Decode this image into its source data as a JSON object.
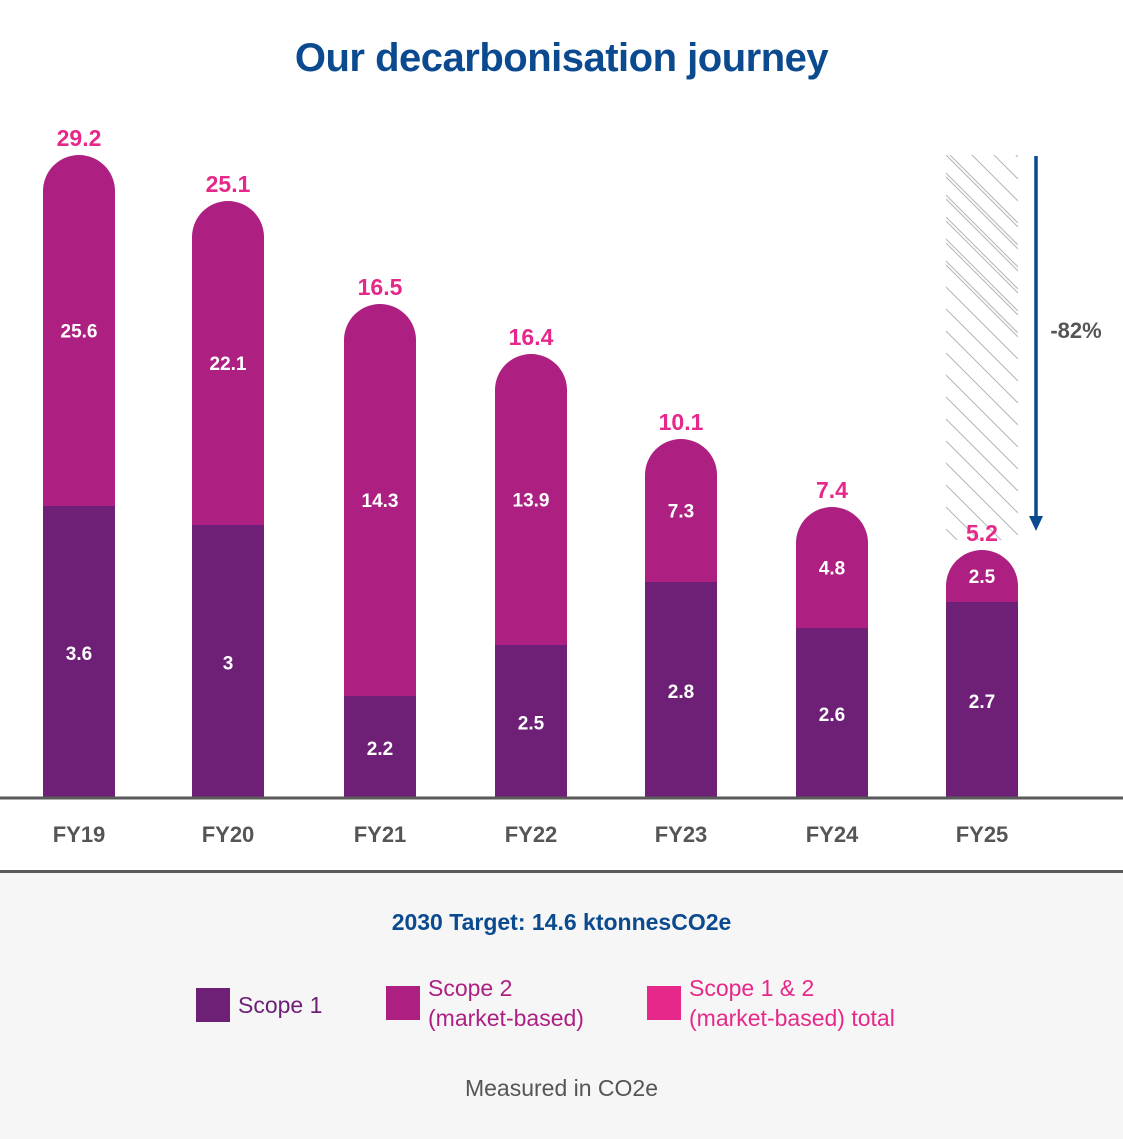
{
  "chart_data": {
    "type": "bar",
    "stacked": true,
    "title": "Our decarbonisation journey",
    "categories": [
      "FY19",
      "FY20",
      "FY21",
      "FY22",
      "FY23",
      "FY24",
      "FY25"
    ],
    "series": [
      {
        "name": "Scope 1",
        "values": [
          3.6,
          3,
          2.2,
          2.5,
          2.8,
          2.6,
          2.7
        ],
        "color": "#6e2077"
      },
      {
        "name": "Scope 2 (market-based)",
        "values": [
          25.6,
          22.1,
          14.3,
          13.9,
          7.3,
          4.8,
          2.5
        ],
        "color": "#ae1f82"
      }
    ],
    "totals": {
      "name": "Scope 1 & 2 (market-based) total",
      "values": [
        29.2,
        25.1,
        16.5,
        16.4,
        10.1,
        7.4,
        5.2
      ],
      "color": "#e6288a"
    },
    "annotation": {
      "text": "-82%",
      "arrow_color": "#0b4a8f"
    },
    "grid": false,
    "legend_placement": "bottom"
  },
  "target": "2030 Target: 14.6 ktonnesCO2e",
  "legend": {
    "scope1": "Scope 1",
    "scope2_line1": "Scope 2",
    "scope2_line2": "(market-based)",
    "total_line1": "Scope 1 & 2",
    "total_line2": "(market-based) total"
  },
  "unit_note": "Measured in CO2e"
}
